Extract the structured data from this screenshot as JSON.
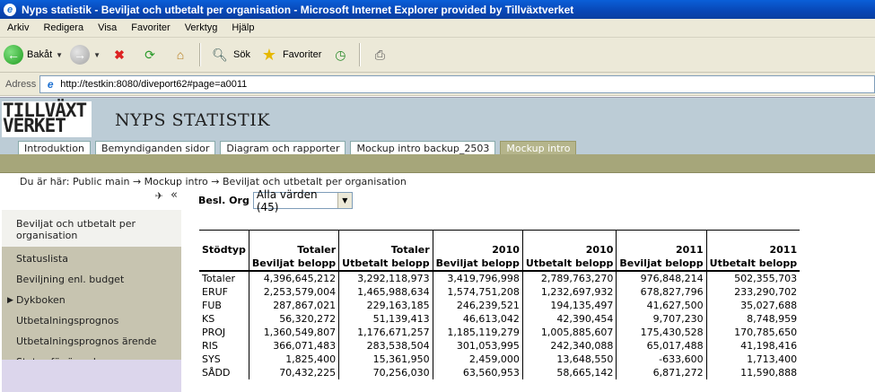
{
  "window": {
    "title": "Nyps statistik - Beviljat och utbetalt per organisation - Microsoft Internet Explorer provided by Tillväxtverket"
  },
  "menu": [
    "Arkiv",
    "Redigera",
    "Visa",
    "Favoriter",
    "Verktyg",
    "Hjälp"
  ],
  "toolbar": {
    "back_label": "Bakåt",
    "search_label": "Sök",
    "favorites_label": "Favoriter"
  },
  "address": {
    "label": "Adress",
    "url": "http://testkin:8080/diveport62#page=a0011"
  },
  "header": {
    "logo_line1": "TILLVÄXT",
    "logo_line2": "VERKET",
    "site_title": "NYPS STATISTIK",
    "tabs": [
      {
        "label": "Introduktion",
        "active": false
      },
      {
        "label": "Bemyndiganden sidor",
        "active": false
      },
      {
        "label": "Diagram och rapporter",
        "active": false
      },
      {
        "label": "Mockup intro backup_2503",
        "active": false
      },
      {
        "label": "Mockup intro",
        "active": true
      }
    ]
  },
  "breadcrumb": "Du är här: Public main → Mockup intro → Beviljat och utbetalt per organisation",
  "sidebar": {
    "items": [
      {
        "label": "Beviljat och utbetalt per organisation",
        "active": true
      },
      {
        "label": "Statuslista"
      },
      {
        "label": "Beviljning enl. budget"
      },
      {
        "label": "Dykboken",
        "expandable": true
      },
      {
        "label": "Utbetalningsprognos"
      },
      {
        "label": "Utbetalningsprognos ärende"
      },
      {
        "label": "Status för ärende"
      }
    ]
  },
  "filter": {
    "label": "Besl. Org",
    "value": "Alla värden (45)"
  },
  "table": {
    "corner": "Stödtyp",
    "header_row1": [
      "Totaler",
      "Totaler",
      "2010",
      "2010",
      "2011",
      "2011"
    ],
    "header_row2": [
      "Beviljat belopp",
      "Utbetalt belopp",
      "Beviljat belopp",
      "Utbetalt belopp",
      "Beviljat belopp",
      "Utbetalt belopp"
    ],
    "rows": [
      {
        "label": "Totaler",
        "values": [
          "4,396,645,212",
          "3,292,118,973",
          "3,419,796,998",
          "2,789,763,270",
          "976,848,214",
          "502,355,703"
        ]
      },
      {
        "label": "ERUF",
        "values": [
          "2,253,579,004",
          "1,465,988,634",
          "1,574,751,208",
          "1,232,697,932",
          "678,827,796",
          "233,290,702"
        ]
      },
      {
        "label": "FUB",
        "values": [
          "287,867,021",
          "229,163,185",
          "246,239,521",
          "194,135,497",
          "41,627,500",
          "35,027,688"
        ]
      },
      {
        "label": "KS",
        "values": [
          "56,320,272",
          "51,139,413",
          "46,613,042",
          "42,390,454",
          "9,707,230",
          "8,748,959"
        ]
      },
      {
        "label": "PROJ",
        "values": [
          "1,360,549,807",
          "1,176,671,257",
          "1,185,119,279",
          "1,005,885,607",
          "175,430,528",
          "170,785,650"
        ]
      },
      {
        "label": "RIS",
        "values": [
          "366,071,483",
          "283,538,504",
          "301,053,995",
          "242,340,088",
          "65,017,488",
          "41,198,416"
        ]
      },
      {
        "label": "SYS",
        "values": [
          "1,825,400",
          "15,361,950",
          "2,459,000",
          "13,648,550",
          "-633,600",
          "1,713,400"
        ]
      },
      {
        "label": "SÅDD",
        "values": [
          "70,432,225",
          "70,256,030",
          "63,560,953",
          "58,665,142",
          "6,871,272",
          "11,590,888"
        ]
      }
    ]
  }
}
